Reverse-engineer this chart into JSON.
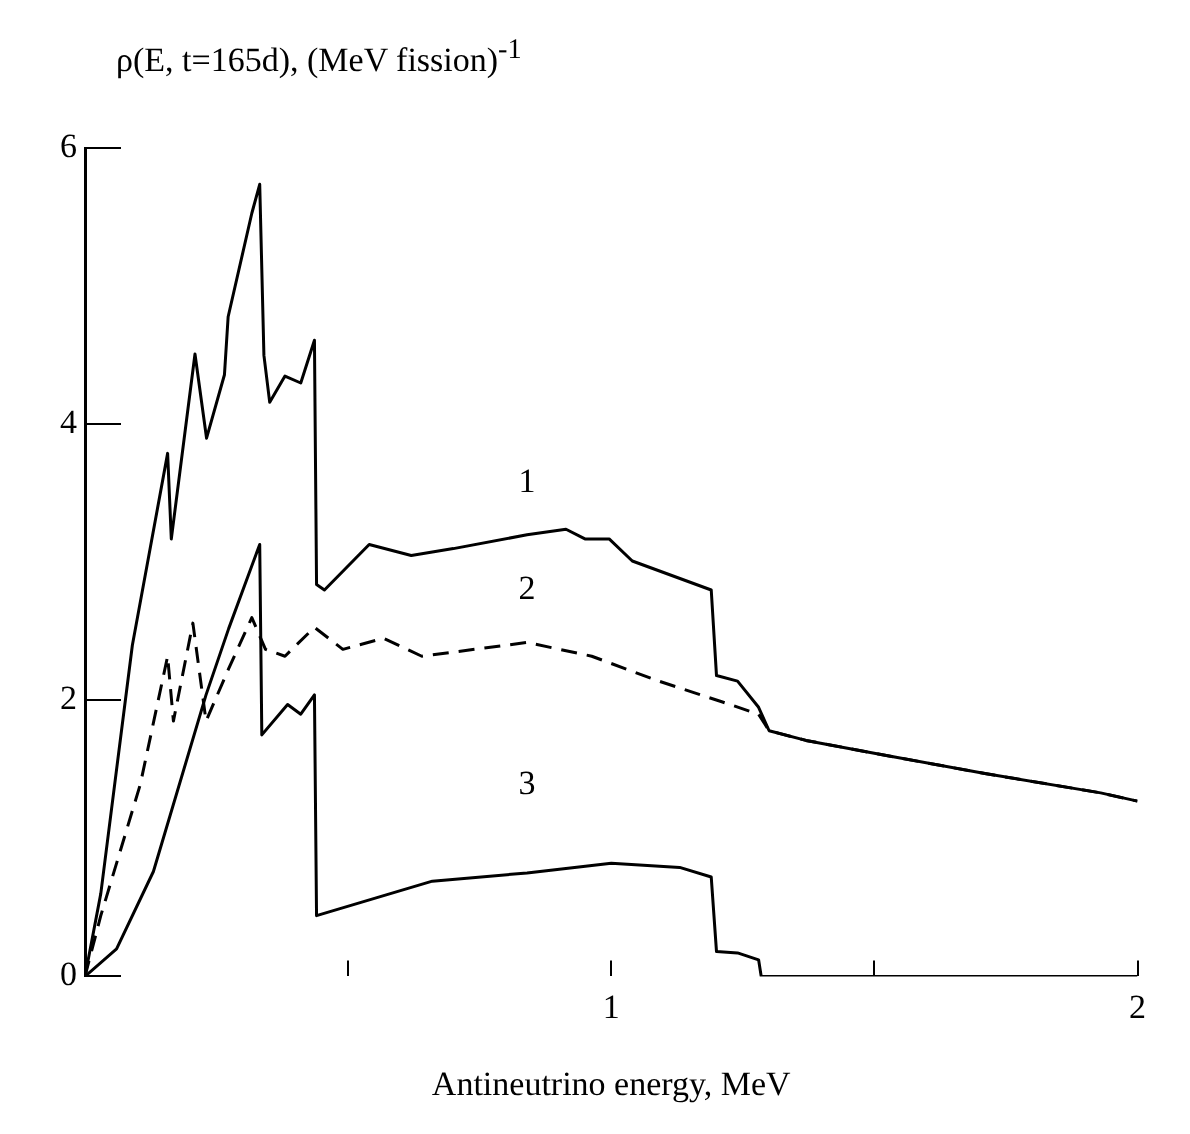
{
  "chart_data": {
    "type": "line",
    "ylabel": "ρ(E, t=165d), (MeV fission)$^{-1}$",
    "xlabel": "Antineutrino energy, MeV",
    "xlim": [
      0,
      2
    ],
    "ylim": [
      0,
      6
    ],
    "xticks": [
      {
        "value": 0.5,
        "label": null
      },
      1,
      {
        "value": 1.5,
        "label": null
      },
      2
    ],
    "yticks": [
      0,
      2,
      4,
      6
    ],
    "grid": false,
    "legend": false,
    "marker": "none",
    "series": [
      {
        "name": "1",
        "color": "#000000",
        "line_style": "solid",
        "x": [
          0,
          0.03,
          0.09,
          0.157,
          0.164,
          0.209,
          0.231,
          0.265,
          0.272,
          0.317,
          0.332,
          0.34,
          0.351,
          0.38,
          0.41,
          0.436,
          0.44,
          0.455,
          0.54,
          0.62,
          0.7,
          0.84,
          0.914,
          0.95,
          0.996,
          1.04,
          1.19,
          1.2,
          1.24,
          1.28,
          1.3,
          1.37,
          1.51,
          1.71,
          1.93,
          2.0
        ],
        "values": [
          0,
          0.6,
          2.4,
          3.79,
          3.17,
          4.51,
          3.9,
          4.36,
          4.78,
          5.53,
          5.74,
          4.5,
          4.16,
          4.35,
          4.3,
          4.61,
          2.84,
          2.8,
          3.13,
          3.05,
          3.1,
          3.2,
          3.24,
          3.17,
          3.17,
          3.01,
          2.8,
          2.18,
          2.14,
          1.95,
          1.78,
          1.71,
          1.61,
          1.47,
          1.33,
          1.27
        ]
      },
      {
        "name": "2",
        "color": "#000000",
        "line_style": "dashed",
        "x": [
          0,
          0.03,
          0.105,
          0.157,
          0.168,
          0.205,
          0.23,
          0.273,
          0.317,
          0.343,
          0.38,
          0.436,
          0.49,
          0.567,
          0.64,
          0.84,
          0.963,
          1.09,
          1.21,
          1.28,
          1.3,
          1.37,
          1.51,
          1.71,
          1.93,
          2.0
        ],
        "values": [
          0,
          0.44,
          1.39,
          2.32,
          1.85,
          2.56,
          1.85,
          2.23,
          2.6,
          2.37,
          2.32,
          2.53,
          2.37,
          2.45,
          2.32,
          2.42,
          2.32,
          2.14,
          1.99,
          1.9,
          1.78,
          1.71,
          1.61,
          1.47,
          1.33,
          1.27
        ]
      },
      {
        "name": "3",
        "color": "#000000",
        "line_style": "solid",
        "x": [
          0,
          0.06,
          0.13,
          0.23,
          0.273,
          0.332,
          0.336,
          0.385,
          0.41,
          0.436,
          0.44,
          0.66,
          0.84,
          1.0,
          1.13,
          1.19,
          1.2,
          1.24,
          1.28,
          1.285,
          2.0
        ],
        "values": [
          0,
          0.2,
          0.76,
          2.04,
          2.52,
          3.13,
          1.75,
          1.97,
          1.9,
          2.04,
          0.44,
          0.69,
          0.75,
          0.82,
          0.79,
          0.72,
          0.18,
          0.17,
          0.12,
          0,
          0
        ]
      }
    ]
  }
}
